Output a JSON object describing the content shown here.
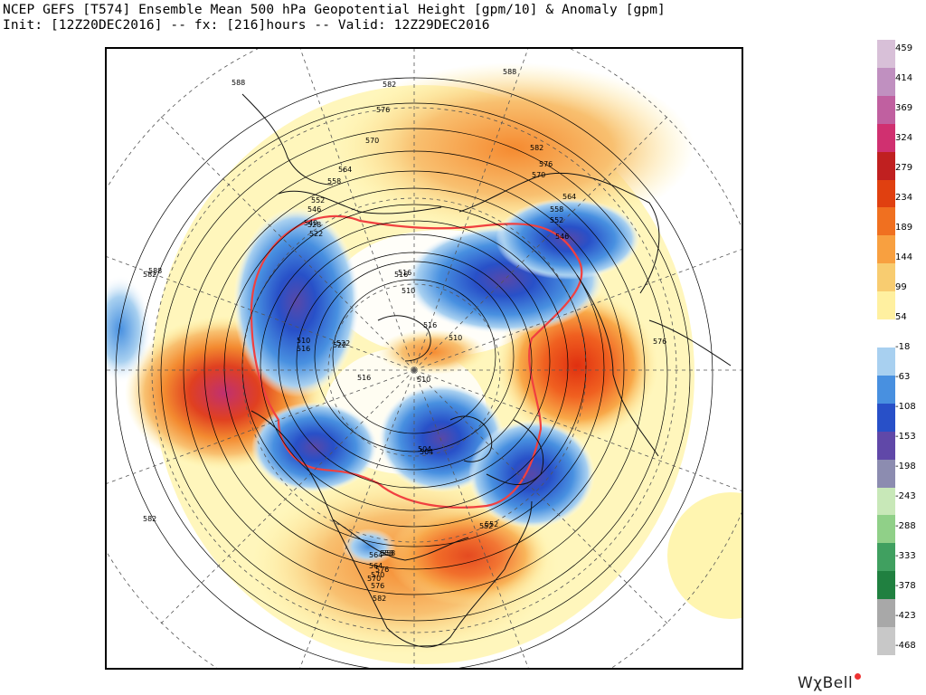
{
  "title": {
    "line1": "NCEP GEFS [T574] Ensemble Mean 500 hPa Geopotential Height [gpm/10] & Anomaly [gpm]",
    "line2": "Init: [12Z20DEC2016] -- fx: [216]hours -- Valid: 12Z29DEC2016"
  },
  "colorbar": {
    "labels": [
      "459",
      "414",
      "369",
      "324",
      "279",
      "234",
      "189",
      "144",
      "99",
      "54",
      "-18",
      "-63",
      "-108",
      "-153",
      "-198",
      "-243",
      "-288",
      "-333",
      "-378",
      "-423",
      "-468"
    ],
    "colors": [
      "#d8c0d8",
      "#c090c0",
      "#c060a0",
      "#d03070",
      "#c02020",
      "#e04010",
      "#f07020",
      "#f8a040",
      "#f8cc70",
      "#fff0a0",
      "#ffffff",
      "#a8d0f0",
      "#4890e0",
      "#2850c8",
      "#6048a8",
      "#8c8cb0",
      "#c8e8b8",
      "#90d088",
      "#40a060",
      "#208040",
      "#a8a8a8",
      "#c8c8c8"
    ]
  },
  "contour_labels": [
    "588",
    "582",
    "576",
    "570",
    "564",
    "558",
    "552",
    "546",
    "540",
    "528",
    "522",
    "516",
    "510",
    "504",
    "582",
    "576",
    "570",
    "564",
    "558",
    "552",
    "546",
    "588",
    "582",
    "576",
    "570",
    "564",
    "558",
    "552",
    "510",
    "516",
    "522",
    "516",
    "510",
    "516",
    "516",
    "510",
    "504",
    "522",
    "552",
    "558",
    "564",
    "570",
    "576",
    "582",
    "576",
    "582",
    "588"
  ],
  "brand": "WχBell"
}
